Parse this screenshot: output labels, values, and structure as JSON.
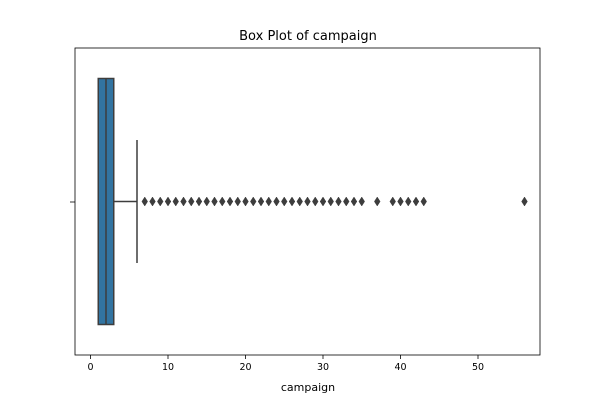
{
  "chart_data": {
    "type": "box",
    "title": "Box Plot of campaign",
    "xlabel": "campaign",
    "ylabel": "",
    "orientation": "horizontal",
    "xlim": [
      -2,
      58
    ],
    "xticks": [
      0,
      10,
      20,
      30,
      40,
      50
    ],
    "box_color": "#3274a1",
    "line_color": "#3d3d3d",
    "stats": {
      "min": 1,
      "q1": 1,
      "median": 2,
      "q3": 3,
      "whisker_high": 6
    },
    "outliers": [
      7,
      8,
      9,
      10,
      11,
      12,
      13,
      14,
      15,
      16,
      17,
      18,
      19,
      20,
      21,
      22,
      23,
      24,
      25,
      26,
      27,
      28,
      29,
      30,
      31,
      32,
      33,
      34,
      35,
      37,
      39,
      40,
      41,
      42,
      43,
      56
    ],
    "grid": false
  }
}
